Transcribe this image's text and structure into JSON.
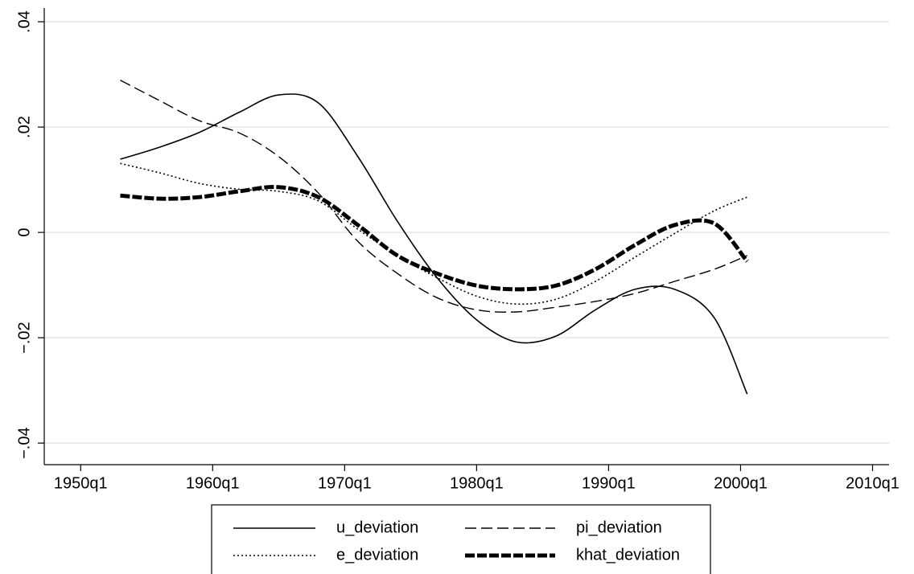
{
  "chart_data": {
    "type": "line",
    "x": [
      1953,
      1956,
      1959,
      1962,
      1965,
      1968,
      1971,
      1974,
      1977,
      1980,
      1983,
      1986,
      1989,
      1992,
      1995,
      1998,
      2000.5
    ],
    "series": [
      {
        "name": "u_deviation",
        "color": "#000000",
        "style": "solid",
        "values": [
          0.0139,
          0.0162,
          0.019,
          0.0228,
          0.0261,
          0.0246,
          0.0144,
          0.0021,
          -0.0086,
          -0.0166,
          -0.0208,
          -0.0197,
          -0.0147,
          -0.0108,
          -0.0108,
          -0.0162,
          -0.0307
        ]
      },
      {
        "name": "pi_deviation",
        "color": "#000000",
        "style": "dashed",
        "values": [
          0.0289,
          0.025,
          0.0212,
          0.0189,
          0.0144,
          0.0075,
          -0.0017,
          -0.0078,
          -0.0124,
          -0.0147,
          -0.0151,
          -0.0142,
          -0.0131,
          -0.0116,
          -0.0093,
          -0.007,
          -0.0044
        ]
      },
      {
        "name": "e_deviation",
        "color": "#000000",
        "style": "dotted",
        "values": [
          0.0131,
          0.0113,
          0.0093,
          0.0082,
          0.0078,
          0.006,
          0.0006,
          -0.0044,
          -0.0086,
          -0.0121,
          -0.0136,
          -0.0127,
          -0.0093,
          -0.0047,
          -0.0002,
          0.0041,
          0.0067
        ]
      },
      {
        "name": "khat_deviation",
        "color": "#000000",
        "style": "thick-dashed",
        "values": [
          0.007,
          0.0064,
          0.0067,
          0.0078,
          0.0086,
          0.0067,
          0.0014,
          -0.0044,
          -0.0078,
          -0.0101,
          -0.0108,
          -0.0101,
          -0.007,
          -0.0024,
          0.0014,
          0.0017,
          -0.0055
        ]
      }
    ],
    "xlim": [
      1947.24,
      2011.25
    ],
    "ylim": [
      -0.0441,
      0.0426
    ],
    "xticks": [
      {
        "value": 1950,
        "label": "1950q1"
      },
      {
        "value": 1960,
        "label": "1960q1"
      },
      {
        "value": 1970,
        "label": "1970q1"
      },
      {
        "value": 1980,
        "label": "1980q1"
      },
      {
        "value": 1990,
        "label": "1990q1"
      },
      {
        "value": 2000,
        "label": "2000q1"
      },
      {
        "value": 2010,
        "label": "2010q1"
      }
    ],
    "yticks": [
      {
        "value": -0.04,
        "label": "−.04"
      },
      {
        "value": -0.02,
        "label": "−.02"
      },
      0,
      {
        "value": 0.02,
        "label": ".02"
      },
      {
        "value": 0.04,
        "label": ".04"
      }
    ],
    "grid": true,
    "legend": "bottom"
  }
}
